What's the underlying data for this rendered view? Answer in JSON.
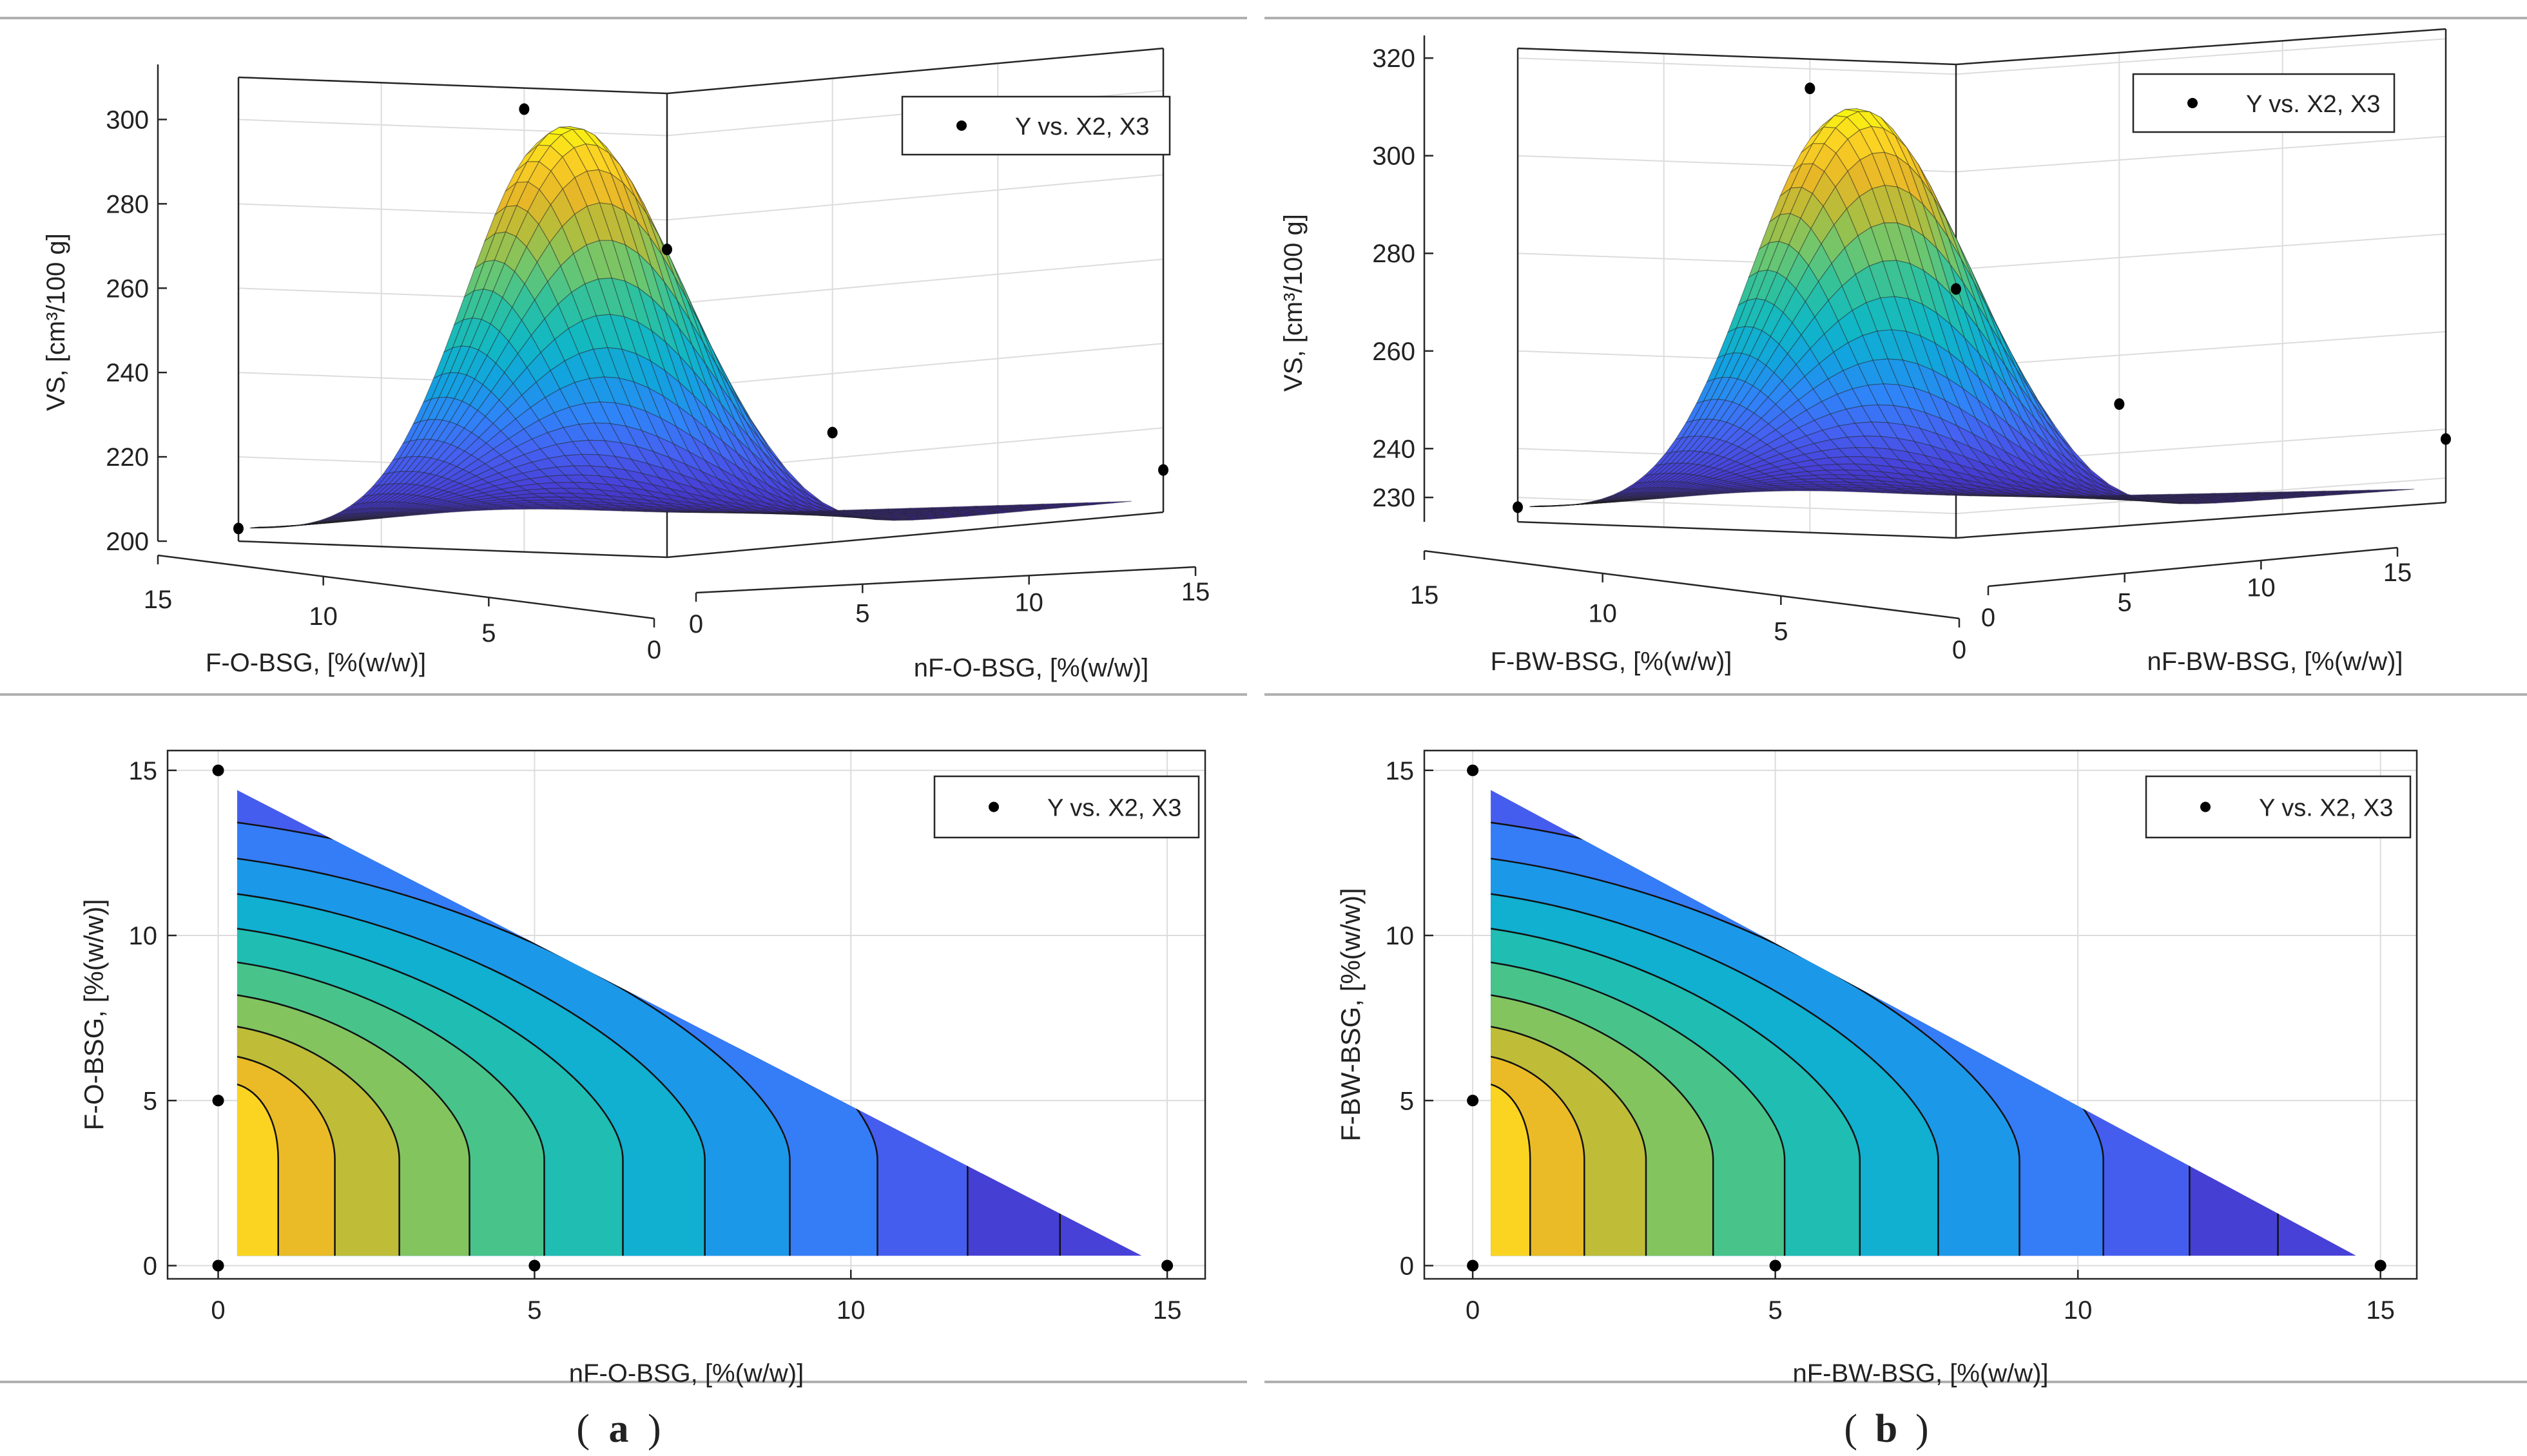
{
  "figure": {
    "captions": [
      "a",
      "b"
    ],
    "colors": {
      "ramp": [
        "#3e26a8",
        "#4741d8",
        "#4562f2",
        "#2f84f8",
        "#12a2e0",
        "#11b8c4",
        "#2ec19f",
        "#6cc770",
        "#b1bd3d",
        "#e7b728",
        "#fbd124",
        "#f8fa0d"
      ],
      "frame": "#262626",
      "grid": "#dcdcdc",
      "divider": "#b0b0b0",
      "marker": "#000000"
    }
  },
  "chart_data": [
    {
      "panel": "a",
      "type": "surface3d",
      "zlabel": "VS, [cm³/100 g]",
      "xlabel": "F-O-BSG, [%(w/w)]",
      "ylabel": "nF-O-BSG, [%(w/w)]",
      "legend": "Y vs. X2, X3",
      "legend_location": "top-right",
      "zticks": [
        "200",
        "220",
        "240",
        "260",
        "280",
        "300"
      ],
      "zlim": [
        200,
        310
      ],
      "xticks": [
        "15",
        "10",
        "5",
        "0"
      ],
      "yticks": [
        "0",
        "5",
        "10",
        "15"
      ],
      "peak": {
        "f": 4,
        "nf": 0.5,
        "vs": 301
      },
      "base": 203,
      "points": [
        {
          "f": 15,
          "nf": 0,
          "vs": 203
        },
        {
          "f": 5,
          "nf": 0,
          "vs": 305
        },
        {
          "f": 0,
          "nf": 0,
          "vs": 273
        },
        {
          "f": 0,
          "nf": 5,
          "vs": 226
        },
        {
          "f": 0,
          "nf": 15,
          "vs": 210
        }
      ]
    },
    {
      "panel": "b",
      "type": "surface3d",
      "zlabel": "VS, [cm³/100 g]",
      "xlabel": "F-BW-BSG, [%(w/w)]",
      "ylabel": "nF-BW-BSG, [%(w/w)]",
      "legend": "Y vs. X2, X3",
      "legend_location": "top-right",
      "zticks": [
        "230",
        "240",
        "260",
        "280",
        "300",
        "320"
      ],
      "zlim": [
        225,
        322
      ],
      "xticks": [
        "15",
        "10",
        "5",
        "0"
      ],
      "yticks": [
        "0",
        "5",
        "10",
        "15"
      ],
      "peak": {
        "f": 4,
        "nf": 0.5,
        "vs": 312
      },
      "base": 228,
      "points": [
        {
          "f": 15,
          "nf": 0,
          "vs": 228
        },
        {
          "f": 5,
          "nf": 0,
          "vs": 316
        },
        {
          "f": 0,
          "nf": 0,
          "vs": 276
        },
        {
          "f": 0,
          "nf": 5,
          "vs": 250
        },
        {
          "f": 0,
          "nf": 15,
          "vs": 238
        }
      ]
    },
    {
      "panel": "a",
      "type": "contour",
      "xlabel": "nF-O-BSG, [%(w/w)]",
      "ylabel": "F-O-BSG, [%(w/w)]",
      "legend": "Y vs. X2, X3",
      "legend_location": "top-right",
      "xticks": [
        "0",
        "5",
        "10",
        "15"
      ],
      "yticks": [
        "0",
        "5",
        "10",
        "15"
      ],
      "xlim": [
        -0.8,
        15.6
      ],
      "ylim": [
        -0.4,
        15.6
      ],
      "region": "nF + F <= 14.6",
      "levels": 12,
      "points": [
        {
          "x": 0,
          "y": 15
        },
        {
          "x": 0,
          "y": 5
        },
        {
          "x": 0,
          "y": 0
        },
        {
          "x": 5,
          "y": 0
        },
        {
          "x": 15,
          "y": 0
        }
      ]
    },
    {
      "panel": "b",
      "type": "contour",
      "xlabel": "nF-BW-BSG, [%(w/w)]",
      "ylabel": "F-BW-BSG, [%(w/w)]",
      "legend": "Y vs. X2, X3",
      "legend_location": "top-right",
      "xticks": [
        "0",
        "5",
        "10",
        "15"
      ],
      "yticks": [
        "0",
        "5",
        "10",
        "15"
      ],
      "xlim": [
        -0.8,
        15.6
      ],
      "ylim": [
        -0.4,
        15.6
      ],
      "region": "nF + F <= 14.6",
      "levels": 12,
      "points": [
        {
          "x": 0,
          "y": 15
        },
        {
          "x": 0,
          "y": 5
        },
        {
          "x": 0,
          "y": 0
        },
        {
          "x": 5,
          "y": 0
        },
        {
          "x": 15,
          "y": 0
        }
      ]
    }
  ]
}
